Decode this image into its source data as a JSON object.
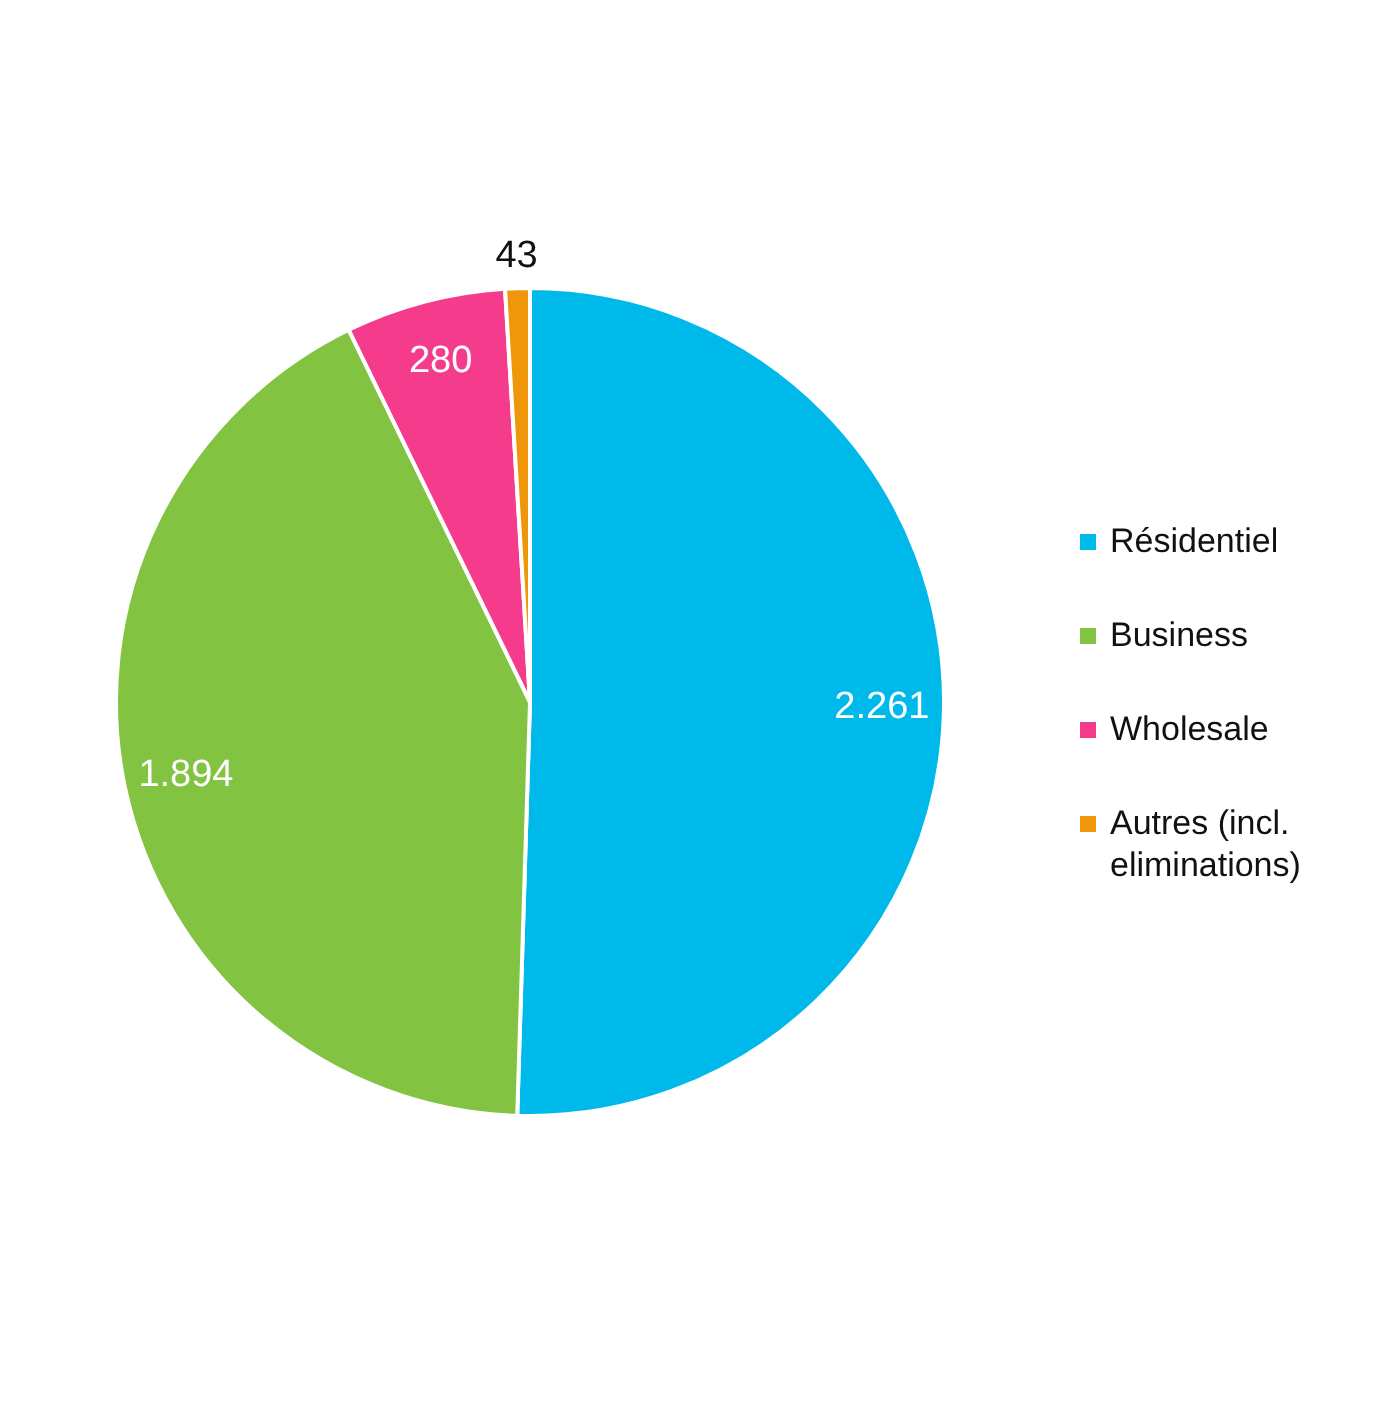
{
  "chart_data": {
    "type": "pie",
    "categories": [
      "Résidentiel",
      "Business",
      "Wholesale",
      "Autres (incl. eliminations)"
    ],
    "values": [
      2261,
      1894,
      280,
      43
    ],
    "colors": [
      "#00b9eb",
      "#82c341",
      "#f53c8c",
      "#f0960a"
    ],
    "value_labels": [
      "2.261",
      "1.894",
      "280",
      "43"
    ],
    "legend": "right"
  }
}
